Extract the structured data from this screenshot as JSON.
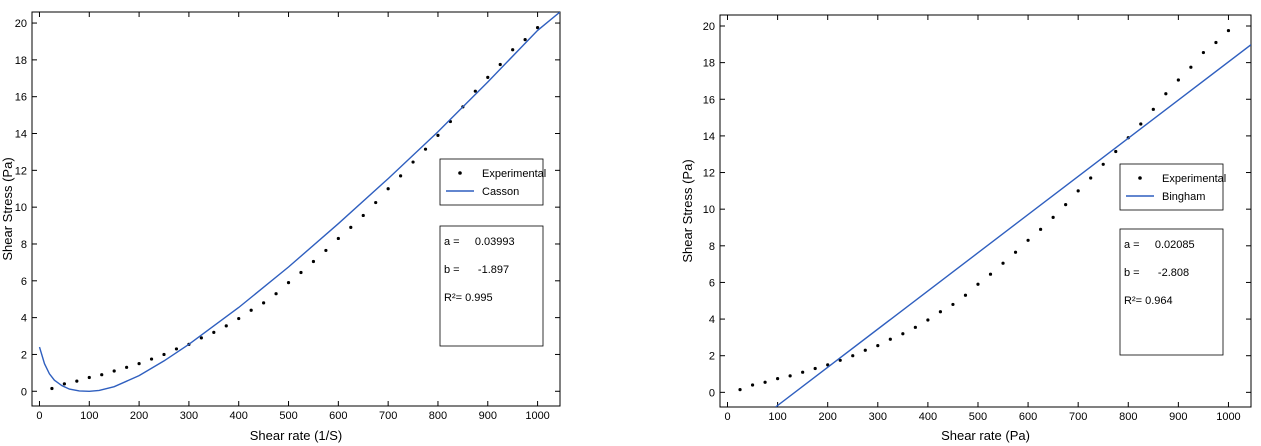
{
  "colors": {
    "fit_line": "#2f5fbf",
    "points": "#000000",
    "axis": "#000000"
  },
  "chart_data": [
    {
      "type": "scatter",
      "xlabel": "Shear rate (1/S)",
      "ylabel": "Shear Stress (Pa)",
      "xlim": [
        -15,
        1045
      ],
      "ylim": [
        -0.8,
        20.6
      ],
      "xticks": [
        0,
        100,
        200,
        300,
        400,
        500,
        600,
        700,
        800,
        900,
        1000
      ],
      "yticks": [
        0,
        2,
        4,
        6,
        8,
        10,
        12,
        14,
        16,
        18,
        20
      ],
      "legend": {
        "placement": "right",
        "entries": [
          "Experimental",
          "Casson"
        ]
      },
      "stats": {
        "a": "a =     0.03993",
        "b": "b =      -1.897",
        "r2": "R²= 0.995"
      },
      "series": [
        {
          "name": "Experimental",
          "kind": "points",
          "x": [
            25,
            50,
            75,
            100,
            125,
            150,
            175,
            200,
            225,
            250,
            275,
            300,
            325,
            350,
            375,
            400,
            425,
            450,
            475,
            500,
            525,
            550,
            575,
            600,
            625,
            650,
            675,
            700,
            725,
            750,
            775,
            800,
            825,
            850,
            875,
            900,
            925,
            950,
            975,
            1000
          ],
          "y": [
            0.15,
            0.4,
            0.55,
            0.75,
            0.9,
            1.1,
            1.3,
            1.5,
            1.75,
            2.0,
            2.3,
            2.55,
            2.9,
            3.2,
            3.55,
            3.95,
            4.4,
            4.8,
            5.3,
            5.9,
            6.45,
            7.05,
            7.65,
            8.3,
            8.9,
            9.55,
            10.25,
            11.0,
            11.7,
            12.45,
            13.15,
            13.9,
            14.65,
            15.45,
            16.3,
            17.05,
            17.75,
            18.55,
            19.1,
            19.75
          ]
        },
        {
          "name": "Casson",
          "kind": "line",
          "x": [
            0,
            10,
            20,
            30,
            45,
            60,
            80,
            100,
            120,
            150,
            200,
            250,
            300,
            400,
            500,
            600,
            700,
            800,
            900,
            1000,
            1045
          ],
          "y": [
            2.4,
            1.5,
            0.95,
            0.6,
            0.3,
            0.12,
            0.02,
            0.0,
            0.05,
            0.25,
            0.85,
            1.65,
            2.55,
            4.55,
            6.75,
            9.1,
            11.55,
            14.1,
            16.8,
            19.6,
            20.6
          ]
        }
      ]
    },
    {
      "type": "scatter",
      "xlabel": "Shear rate (Pa)",
      "ylabel": "Shear Stress (Pa)",
      "xlim": [
        -15,
        1045
      ],
      "ylim": [
        -0.8,
        20.6
      ],
      "xticks": [
        0,
        100,
        200,
        300,
        400,
        500,
        600,
        700,
        800,
        900,
        1000
      ],
      "yticks": [
        0,
        2,
        4,
        6,
        8,
        10,
        12,
        14,
        16,
        18,
        20
      ],
      "legend": {
        "placement": "right",
        "entries": [
          "Experimental",
          "Bingham"
        ]
      },
      "stats": {
        "a": "a =     0.02085",
        "b": "b =      -2.808",
        "r2": "R²= 0.964"
      },
      "series": [
        {
          "name": "Experimental",
          "kind": "points",
          "x": [
            25,
            50,
            75,
            100,
            125,
            150,
            175,
            200,
            225,
            250,
            275,
            300,
            325,
            350,
            375,
            400,
            425,
            450,
            475,
            500,
            525,
            550,
            575,
            600,
            625,
            650,
            675,
            700,
            725,
            750,
            775,
            800,
            825,
            850,
            875,
            900,
            925,
            950,
            975,
            1000
          ],
          "y": [
            0.15,
            0.4,
            0.55,
            0.75,
            0.9,
            1.1,
            1.3,
            1.5,
            1.75,
            2.0,
            2.3,
            2.55,
            2.9,
            3.2,
            3.55,
            3.95,
            4.4,
            4.8,
            5.3,
            5.9,
            6.45,
            7.05,
            7.65,
            8.3,
            8.9,
            9.55,
            10.25,
            11.0,
            11.7,
            12.45,
            13.15,
            13.9,
            14.65,
            15.45,
            16.3,
            17.05,
            17.75,
            18.55,
            19.1,
            19.75
          ]
        },
        {
          "name": "Bingham",
          "kind": "line",
          "x": [
            96,
            1045
          ],
          "y": [
            -0.8,
            18.98
          ]
        }
      ]
    }
  ]
}
